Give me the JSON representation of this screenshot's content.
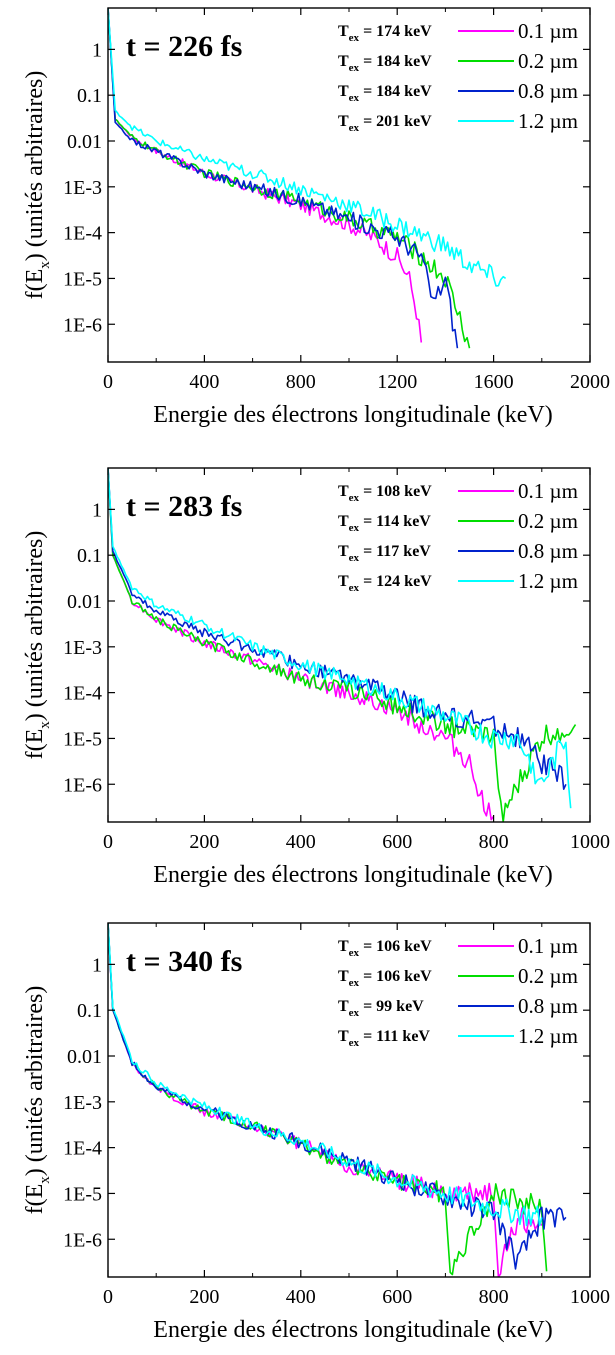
{
  "chart_data": [
    {
      "type": "line",
      "title": "t = 226 fs",
      "xlabel": "Energie des électrons longitudinale (keV)",
      "ylabel_main": "f(E",
      "ylabel_sub": "x",
      "ylabel_tail": ")  (unités arbitraires)",
      "xlim": [
        0,
        2000
      ],
      "ylog": true,
      "ylim": [
        1.5e-07,
        8
      ],
      "xticks": [
        0,
        400,
        800,
        1200,
        1600,
        2000
      ],
      "xtick_labels": [
        "0",
        "400",
        "800",
        "1200",
        "1600",
        "2000"
      ],
      "yticks": [
        1,
        0.1,
        0.01,
        0.001,
        0.0001,
        1e-05,
        1e-06
      ],
      "ytick_labels": [
        "1",
        "0.1",
        "0.01",
        "1E-3",
        "1E-4",
        "1E-5",
        "1E-6"
      ],
      "grid": false,
      "legend_position": "top-right",
      "series": [
        {
          "name": "0.1 µm",
          "label": "0.1 µm",
          "t_label": "174 keV",
          "color": "#ff00ff",
          "x": [
            0,
            30,
            100,
            200,
            400,
            600,
            800,
            1000,
            1100,
            1200,
            1250,
            1280,
            1300
          ],
          "y": [
            8,
            0.03,
            0.012,
            0.006,
            0.002,
            0.0009,
            0.0004,
            0.00015,
            8e-05,
            3e-05,
            1e-05,
            2e-06,
            4e-07
          ]
        },
        {
          "name": "0.2 µm",
          "label": "0.2 µm",
          "t_label": "184 keV",
          "color": "#00dd00",
          "x": [
            0,
            30,
            100,
            200,
            400,
            600,
            800,
            1000,
            1200,
            1300,
            1400,
            1450,
            1500
          ],
          "y": [
            8,
            0.03,
            0.012,
            0.006,
            0.002,
            0.001,
            0.0005,
            0.0002,
            8e-05,
            3e-05,
            1e-05,
            2e-06,
            3e-07
          ]
        },
        {
          "name": "0.8 µm",
          "label": "0.8 µm",
          "t_label": "184 keV",
          "color": "#0022cc",
          "x": [
            0,
            30,
            100,
            200,
            400,
            600,
            800,
            1000,
            1200,
            1300,
            1350,
            1400,
            1450
          ],
          "y": [
            8,
            0.025,
            0.01,
            0.006,
            0.002,
            0.001,
            0.0005,
            0.0002,
            8e-05,
            3e-05,
            3e-06,
            1e-05,
            3e-07
          ]
        },
        {
          "name": "1.2 µm",
          "label": "1.2 µm",
          "t_label": "201 keV",
          "color": "#00ffff",
          "x": [
            0,
            30,
            100,
            200,
            400,
            600,
            800,
            1000,
            1200,
            1400,
            1500,
            1600,
            1650
          ],
          "y": [
            8,
            0.045,
            0.02,
            0.01,
            0.004,
            0.002,
            0.0009,
            0.0004,
            0.00015,
            5e-05,
            2e-05,
            1e-05,
            1e-05
          ]
        }
      ],
      "legend_prefix": "T",
      "legend_sub": "ex",
      "legend_eq": " = "
    },
    {
      "type": "line",
      "title": "t = 283 fs",
      "xlabel": "Energie des électrons longitudinale (keV)",
      "ylabel_main": "f(E",
      "ylabel_sub": "x",
      "ylabel_tail": ")  (unités arbitraires)",
      "xlim": [
        0,
        1000
      ],
      "ylog": true,
      "ylim": [
        1.5e-07,
        8
      ],
      "xticks": [
        0,
        200,
        400,
        600,
        800,
        1000
      ],
      "xtick_labels": [
        "0",
        "200",
        "400",
        "600",
        "800",
        "1000"
      ],
      "yticks": [
        1,
        0.1,
        0.01,
        0.001,
        0.0001,
        1e-05,
        1e-06
      ],
      "ytick_labels": [
        "1",
        "0.1",
        "0.01",
        "1E-3",
        "1E-4",
        "1E-5",
        "1E-6"
      ],
      "grid": false,
      "legend_position": "top-right",
      "series": [
        {
          "name": "0.1 µm",
          "label": "0.1 µm",
          "t_label": "108 keV",
          "color": "#ff00ff",
          "x": [
            0,
            10,
            50,
            100,
            200,
            300,
            400,
            500,
            600,
            700,
            750,
            780,
            800
          ],
          "y": [
            8,
            0.1,
            0.01,
            0.004,
            0.0012,
            0.0005,
            0.0002,
            0.0001,
            4e-05,
            1e-05,
            3e-06,
            4e-07,
            2e-07
          ]
        },
        {
          "name": "0.2 µm",
          "label": "0.2 µm",
          "t_label": "114 keV",
          "color": "#00dd00",
          "x": [
            0,
            10,
            50,
            100,
            200,
            300,
            400,
            500,
            600,
            700,
            800,
            820,
            900,
            970
          ],
          "y": [
            8,
            0.1,
            0.01,
            0.004,
            0.0012,
            0.0005,
            0.0002,
            0.00012,
            5e-05,
            2e-05,
            1e-05,
            2e-07,
            1e-05,
            2e-05
          ]
        },
        {
          "name": "0.8 µm",
          "label": "0.8 µm",
          "t_label": "117 keV",
          "color": "#0022cc",
          "x": [
            0,
            10,
            50,
            100,
            200,
            300,
            400,
            500,
            600,
            700,
            800,
            850,
            900,
            950
          ],
          "y": [
            8,
            0.12,
            0.015,
            0.006,
            0.002,
            0.0009,
            0.0004,
            0.0002,
            8e-05,
            3e-05,
            2e-05,
            1e-05,
            3e-06,
            1e-06
          ]
        },
        {
          "name": "1.2 µm",
          "label": "1.2 µm",
          "t_label": "124 keV",
          "color": "#00ffff",
          "x": [
            0,
            10,
            50,
            100,
            200,
            300,
            400,
            500,
            600,
            700,
            800,
            850,
            900,
            950,
            960
          ],
          "y": [
            8,
            0.15,
            0.02,
            0.008,
            0.003,
            0.001,
            0.0004,
            0.0002,
            8e-05,
            3e-05,
            1e-05,
            1e-05,
            1e-06,
            1e-05,
            3e-07
          ]
        }
      ],
      "legend_prefix": "T",
      "legend_sub": "ex",
      "legend_eq": " = "
    },
    {
      "type": "line",
      "title": "t = 340 fs",
      "xlabel": "Energie des électrons longitudinale (keV)",
      "ylabel_main": "f(E",
      "ylabel_sub": "x",
      "ylabel_tail": ")  (unités arbitraires)",
      "xlim": [
        0,
        1000
      ],
      "ylog": true,
      "ylim": [
        1.5e-07,
        8
      ],
      "xticks": [
        0,
        200,
        400,
        600,
        800,
        1000
      ],
      "xtick_labels": [
        "0",
        "200",
        "400",
        "600",
        "800",
        "1000"
      ],
      "yticks": [
        1,
        0.1,
        0.01,
        0.001,
        0.0001,
        1e-05,
        1e-06
      ],
      "ytick_labels": [
        "1",
        "0.1",
        "0.01",
        "1E-3",
        "1E-4",
        "1E-5",
        "1E-6"
      ],
      "grid": false,
      "legend_position": "top-right",
      "series": [
        {
          "name": "0.1 µm",
          "label": "0.1 µm",
          "t_label": "106 keV",
          "color": "#ff00ff",
          "x": [
            0,
            10,
            50,
            100,
            200,
            300,
            400,
            500,
            600,
            700,
            800,
            810,
            850,
            900
          ],
          "y": [
            8,
            0.1,
            0.007,
            0.002,
            0.0006,
            0.0003,
            0.00012,
            4e-05,
            2e-05,
            1e-05,
            1e-05,
            2e-07,
            3e-06,
            2e-06
          ]
        },
        {
          "name": "0.2 µm",
          "label": "0.2 µm",
          "t_label": "106 keV",
          "color": "#00dd00",
          "x": [
            0,
            10,
            50,
            100,
            200,
            300,
            400,
            500,
            600,
            700,
            710,
            800,
            900,
            910
          ],
          "y": [
            8,
            0.1,
            0.007,
            0.002,
            0.0006,
            0.0003,
            0.00012,
            4e-05,
            2e-05,
            1e-05,
            2e-07,
            1e-05,
            5e-06,
            2e-07
          ]
        },
        {
          "name": "0.8 µm",
          "label": "0.8 µm",
          "t_label": "99 keV",
          "color": "#0022cc",
          "x": [
            0,
            10,
            50,
            100,
            200,
            300,
            400,
            500,
            600,
            700,
            800,
            850,
            900,
            950
          ],
          "y": [
            8,
            0.1,
            0.007,
            0.002,
            0.0007,
            0.0003,
            0.00013,
            5e-05,
            2e-05,
            8e-06,
            4e-06,
            3e-07,
            3e-06,
            3e-06
          ]
        },
        {
          "name": "1.2 µm",
          "label": "1.2 µm",
          "t_label": "111 keV",
          "color": "#00ffff",
          "x": [
            0,
            10,
            50,
            100,
            200,
            300,
            400,
            500,
            600,
            700,
            800,
            900
          ],
          "y": [
            8,
            0.12,
            0.008,
            0.0025,
            0.0008,
            0.0003,
            0.00014,
            5e-05,
            2e-05,
            1e-05,
            5e-06,
            3e-06
          ]
        }
      ],
      "legend_prefix": "T",
      "legend_sub": "ex",
      "legend_eq": " = "
    }
  ]
}
